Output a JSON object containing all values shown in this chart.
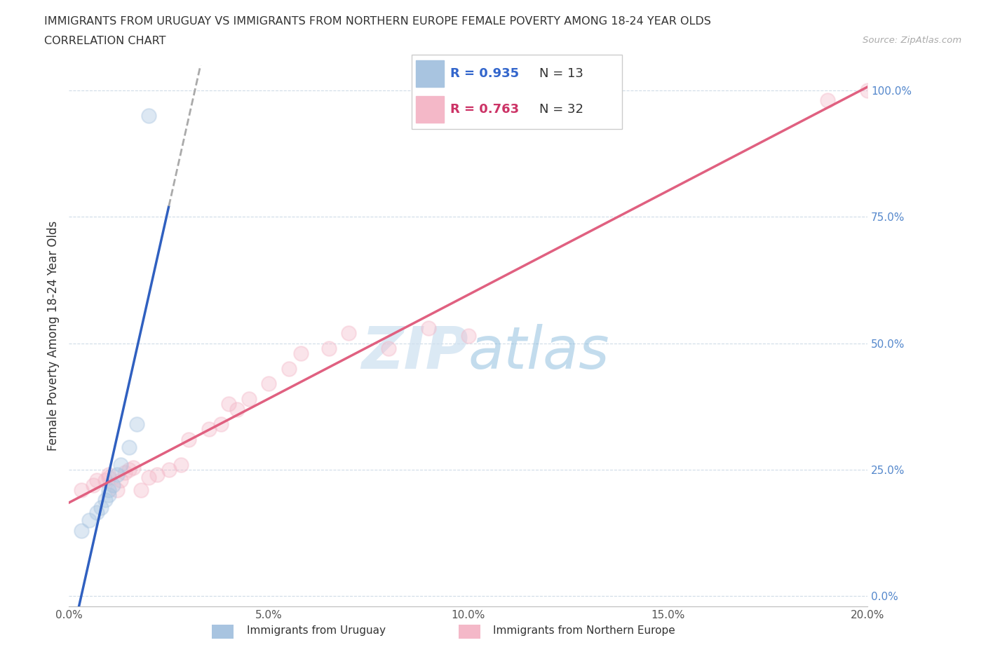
{
  "title_line1": "IMMIGRANTS FROM URUGUAY VS IMMIGRANTS FROM NORTHERN EUROPE FEMALE POVERTY AMONG 18-24 YEAR OLDS",
  "title_line2": "CORRELATION CHART",
  "source_text": "Source: ZipAtlas.com",
  "ylabel": "Female Poverty Among 18-24 Year Olds",
  "xlim": [
    0.0,
    0.2
  ],
  "ylim": [
    -0.02,
    1.05
  ],
  "yticks": [
    0.0,
    0.25,
    0.5,
    0.75,
    1.0
  ],
  "ytick_labels": [
    "0.0%",
    "25.0%",
    "50.0%",
    "75.0%",
    "100.0%"
  ],
  "xticks": [
    0.0,
    0.05,
    0.1,
    0.15,
    0.2
  ],
  "xtick_labels": [
    "0.0%",
    "5.0%",
    "10.0%",
    "15.0%",
    "20.0%"
  ],
  "uruguay_R": 0.935,
  "uruguay_N": 13,
  "northern_R": 0.763,
  "northern_N": 32,
  "uruguay_color": "#a8c4e0",
  "northern_color": "#f4b8c8",
  "uruguay_line_color": "#3060c0",
  "northern_line_color": "#e06080",
  "watermark_color": "#cde0f0",
  "legend_label_uruguay": "Immigrants from Uruguay",
  "legend_label_northern": "Immigrants from Northern Europe",
  "background_color": "#ffffff",
  "uruguay_x": [
    0.003,
    0.005,
    0.007,
    0.008,
    0.009,
    0.01,
    0.01,
    0.011,
    0.012,
    0.013,
    0.015,
    0.017,
    0.02
  ],
  "uruguay_y": [
    0.13,
    0.15,
    0.165,
    0.175,
    0.19,
    0.2,
    0.21,
    0.22,
    0.24,
    0.26,
    0.295,
    0.34,
    0.95
  ],
  "northern_x": [
    0.003,
    0.006,
    0.007,
    0.009,
    0.01,
    0.01,
    0.012,
    0.013,
    0.014,
    0.015,
    0.016,
    0.018,
    0.02,
    0.022,
    0.025,
    0.028,
    0.03,
    0.035,
    0.038,
    0.04,
    0.042,
    0.045,
    0.05,
    0.055,
    0.058,
    0.065,
    0.07,
    0.08,
    0.09,
    0.1,
    0.19,
    0.2
  ],
  "northern_y": [
    0.21,
    0.22,
    0.23,
    0.23,
    0.235,
    0.24,
    0.21,
    0.23,
    0.245,
    0.25,
    0.255,
    0.21,
    0.235,
    0.24,
    0.25,
    0.26,
    0.31,
    0.33,
    0.34,
    0.38,
    0.37,
    0.39,
    0.42,
    0.45,
    0.48,
    0.49,
    0.52,
    0.49,
    0.53,
    0.515,
    0.98,
    1.0
  ],
  "dot_size": 220,
  "dot_alpha": 0.38,
  "dot_linewidth": 1.5
}
